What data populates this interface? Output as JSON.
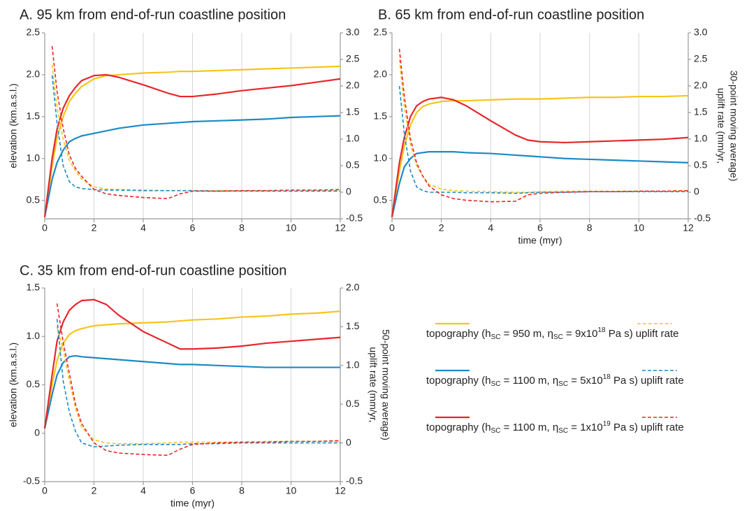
{
  "chart_data": [
    {
      "type": "line",
      "title": "A. 95 km from end-of-run coastline position",
      "ylabel": "elevation (km.a.s.l.)",
      "x": [
        0,
        0.3,
        0.5,
        0.75,
        1,
        1.25,
        1.5,
        2,
        2.5,
        3,
        4,
        5,
        5.5,
        6,
        7,
        8,
        9,
        10,
        11,
        12
      ],
      "xlim": [
        0,
        12
      ],
      "xticks": [
        0,
        2,
        4,
        6,
        8,
        10,
        12
      ],
      "ylim": [
        0.28,
        2.5
      ],
      "yticks": [
        0.5,
        {
          "value": 1,
          "label": "1.0"
        },
        1.5,
        {
          "value": 2,
          "label": "2.0"
        },
        2.5
      ],
      "y2lim": [
        -0.5,
        3
      ],
      "y2ticks": [
        -0.5,
        0,
        0.5,
        {
          "value": 1,
          "label": "1.0"
        },
        1.5,
        {
          "value": 2,
          "label": "2.0"
        },
        2.5,
        {
          "value": 3,
          "label": "3.0"
        }
      ],
      "grid": true,
      "series": [
        {
          "color": "#f5c51b",
          "values": [
            0.3,
            0.9,
            1.25,
            1.5,
            1.68,
            1.78,
            1.86,
            1.95,
            1.99,
            2.0,
            2.02,
            2.03,
            2.04,
            2.04,
            2.05,
            2.06,
            2.07,
            2.08,
            2.09,
            2.1
          ]
        },
        {
          "color": "#1b8ac6",
          "values": [
            0.3,
            0.75,
            0.95,
            1.1,
            1.2,
            1.24,
            1.27,
            1.3,
            1.33,
            1.36,
            1.4,
            1.42,
            1.43,
            1.44,
            1.45,
            1.46,
            1.47,
            1.49,
            1.5,
            1.51
          ]
        },
        {
          "color": "#e8262b",
          "values": [
            0.3,
            1.0,
            1.35,
            1.6,
            1.75,
            1.85,
            1.93,
            1.99,
            2.0,
            1.97,
            1.88,
            1.78,
            1.74,
            1.74,
            1.77,
            1.81,
            1.84,
            1.87,
            1.91,
            1.95
          ]
        },
        {
          "color": "#f5c51b",
          "axis": "y2",
          "dash": true,
          "values": [
            null,
            2.4,
            1.6,
            1.0,
            0.6,
            0.4,
            0.25,
            0.1,
            0.06,
            0.05,
            0.04,
            0.03,
            0.03,
            0.03,
            0.03,
            0.03,
            0.03,
            0.02,
            0.03,
            0.03
          ]
        },
        {
          "color": "#1b8ac6",
          "axis": "y2",
          "dash": true,
          "values": [
            null,
            2.2,
            1.3,
            0.5,
            0.2,
            0.1,
            0.07,
            0.05,
            0.04,
            0.04,
            0.03,
            0.03,
            0.03,
            0.03,
            0.02,
            0.02,
            0.02,
            0.02,
            0.02,
            0.02
          ]
        },
        {
          "color": "#e8262b",
          "axis": "y2",
          "dash": true,
          "values": [
            null,
            2.75,
            1.9,
            1.2,
            0.7,
            0.45,
            0.3,
            0.05,
            -0.03,
            -0.06,
            -0.1,
            -0.12,
            -0.03,
            0.02,
            0.02,
            0.03,
            0.03,
            0.04,
            0.04,
            0.05
          ]
        }
      ]
    },
    {
      "type": "line",
      "title": "B. 65 km from end-of-run coastline position",
      "xlabel": "time (myr)",
      "y2label": [
        "uplift rate (mm/yr,",
        "30-point moving average)"
      ],
      "x": [
        0,
        0.3,
        0.5,
        0.75,
        1,
        1.25,
        1.5,
        2,
        2.5,
        3,
        4,
        5,
        5.5,
        6,
        7,
        8,
        9,
        10,
        11,
        12
      ],
      "xlim": [
        0,
        12
      ],
      "xticks": [
        0,
        2,
        4,
        6,
        8,
        10,
        12
      ],
      "ylim": [
        0.28,
        2.5
      ],
      "yticks": [
        0.5,
        {
          "value": 1,
          "label": "1.0"
        },
        1.5,
        {
          "value": 2,
          "label": "2.0"
        },
        2.5
      ],
      "y2lim": [
        -0.5,
        3
      ],
      "y2ticks": [
        -0.5,
        0,
        0.5,
        {
          "value": 1,
          "label": "1.0"
        },
        1.5,
        {
          "value": 2,
          "label": "2.0"
        },
        2.5,
        {
          "value": 3,
          "label": "3.0"
        }
      ],
      "grid": true,
      "series": [
        {
          "color": "#f5c51b",
          "values": [
            0.3,
            0.85,
            1.15,
            1.4,
            1.55,
            1.62,
            1.65,
            1.68,
            1.69,
            1.69,
            1.7,
            1.71,
            1.71,
            1.71,
            1.72,
            1.73,
            1.73,
            1.74,
            1.74,
            1.75
          ]
        },
        {
          "color": "#1b8ac6",
          "values": [
            0.3,
            0.7,
            0.9,
            1.0,
            1.06,
            1.07,
            1.08,
            1.08,
            1.08,
            1.07,
            1.06,
            1.04,
            1.03,
            1.02,
            1.0,
            0.99,
            0.98,
            0.97,
            0.96,
            0.95
          ]
        },
        {
          "color": "#e8262b",
          "values": [
            0.3,
            0.95,
            1.25,
            1.5,
            1.63,
            1.68,
            1.71,
            1.73,
            1.7,
            1.63,
            1.45,
            1.28,
            1.22,
            1.2,
            1.19,
            1.2,
            1.21,
            1.22,
            1.23,
            1.25
          ]
        },
        {
          "color": "#f5c51b",
          "axis": "y2",
          "dash": true,
          "values": [
            null,
            2.5,
            1.6,
            0.9,
            0.5,
            0.3,
            0.15,
            0.06,
            0.03,
            0.02,
            0.01,
            0.0,
            0.0,
            0.01,
            0.02,
            0.02,
            0.02,
            0.02,
            0.02,
            0.03
          ]
        },
        {
          "color": "#1b8ac6",
          "axis": "y2",
          "dash": true,
          "values": [
            null,
            2.0,
            1.1,
            0.4,
            0.1,
            0.03,
            0.0,
            0.0,
            0.0,
            -0.01,
            -0.01,
            -0.02,
            -0.01,
            0.0,
            0.0,
            0.01,
            0.01,
            0.01,
            0.01,
            0.01
          ]
        },
        {
          "color": "#e8262b",
          "axis": "y2",
          "dash": true,
          "values": [
            null,
            2.7,
            1.8,
            1.0,
            0.55,
            0.3,
            0.12,
            -0.05,
            -0.12,
            -0.15,
            -0.18,
            -0.17,
            -0.05,
            -0.02,
            0.0,
            0.01,
            0.01,
            0.02,
            0.02,
            0.03
          ]
        }
      ]
    },
    {
      "type": "line",
      "title": "C. 35 km from end-of-run coastline position",
      "xlabel": "time (myr)",
      "ylabel": "elevation (km.a.s.l.)",
      "y2label": [
        "uplift rate (mm/yr,",
        "50-point moving average)"
      ],
      "x": [
        0,
        0.3,
        0.5,
        0.75,
        1,
        1.25,
        1.5,
        2,
        2.5,
        3,
        4,
        5,
        5.5,
        6,
        7,
        8,
        9,
        10,
        11,
        12
      ],
      "xlim": [
        0,
        12
      ],
      "xticks": [
        0,
        2,
        4,
        6,
        8,
        10,
        12
      ],
      "ylim": [
        -0.5,
        1.5
      ],
      "yticks": [
        -0.5,
        0,
        0.5,
        {
          "value": 1,
          "label": "1.0"
        },
        1.5
      ],
      "y2lim": [
        -0.5,
        2
      ],
      "y2ticks": [
        -0.5,
        0,
        0.5,
        {
          "value": 1,
          "label": "1.0"
        },
        1.5,
        {
          "value": 2,
          "label": "2.0"
        }
      ],
      "grid": true,
      "legend": "right",
      "series": [
        {
          "name": [
            "topography (h",
            {
              "sub": "SC"
            },
            " = 950 m, η",
            {
              "sub": "SC"
            },
            " = 9x10",
            {
              "sup": "18"
            },
            " Pa s)"
          ],
          "color": "#f5c51b",
          "values": [
            0.05,
            0.5,
            0.75,
            0.93,
            1.02,
            1.06,
            1.08,
            1.11,
            1.12,
            1.13,
            1.14,
            1.15,
            1.16,
            1.17,
            1.18,
            1.2,
            1.21,
            1.23,
            1.24,
            1.26
          ]
        },
        {
          "name": [
            "topography (h",
            {
              "sub": "SC"
            },
            " = 1100 m, η",
            {
              "sub": "SC"
            },
            " = 5x10",
            {
              "sup": "18"
            },
            " Pa s)"
          ],
          "color": "#1b8ac6",
          "values": [
            0.05,
            0.4,
            0.6,
            0.73,
            0.79,
            0.8,
            0.79,
            0.78,
            0.77,
            0.76,
            0.74,
            0.72,
            0.71,
            0.71,
            0.7,
            0.69,
            0.68,
            0.68,
            0.68,
            0.68
          ]
        },
        {
          "name": [
            "topography (h",
            {
              "sub": "SC"
            },
            " = 1100 m, η",
            {
              "sub": "SC"
            },
            " = 1x10",
            {
              "sup": "19"
            },
            " Pa s)"
          ],
          "color": "#e8262b",
          "values": [
            0.05,
            0.6,
            0.95,
            1.15,
            1.27,
            1.33,
            1.37,
            1.38,
            1.33,
            1.22,
            1.05,
            0.93,
            0.87,
            0.87,
            0.88,
            0.9,
            0.93,
            0.95,
            0.97,
            0.99
          ]
        },
        {
          "name": "uplift rate",
          "color": "#f5c51b",
          "axis": "y2",
          "dash": true,
          "values": [
            null,
            null,
            1.5,
            1.2,
            0.8,
            0.45,
            0.2,
            0.04,
            0.0,
            -0.01,
            -0.01,
            0.0,
            0.01,
            0.01,
            0.01,
            0.01,
            0.02,
            0.02,
            0.02,
            0.02
          ]
        },
        {
          "name": "uplift rate",
          "color": "#1b8ac6",
          "axis": "y2",
          "dash": true,
          "values": [
            null,
            null,
            1.6,
            0.8,
            0.4,
            0.15,
            0.0,
            -0.05,
            -0.04,
            -0.03,
            -0.02,
            -0.02,
            -0.02,
            -0.01,
            -0.01,
            0.0,
            0.0,
            0.0,
            0.0,
            0.0
          ]
        },
        {
          "name": "uplift rate",
          "color": "#e8262b",
          "axis": "y2",
          "dash": true,
          "values": [
            null,
            null,
            1.8,
            1.3,
            0.9,
            0.5,
            0.25,
            0.0,
            -0.1,
            -0.13,
            -0.15,
            -0.16,
            -0.08,
            -0.02,
            0.0,
            0.01,
            0.01,
            0.02,
            0.02,
            0.03
          ]
        }
      ]
    }
  ]
}
